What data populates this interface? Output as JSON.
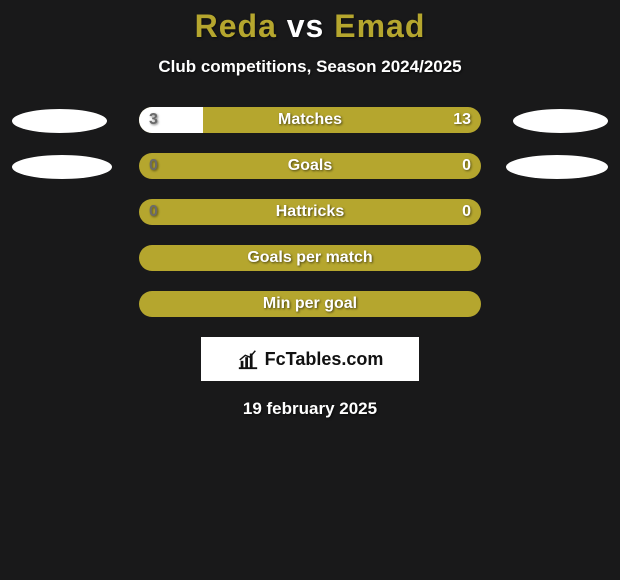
{
  "colors": {
    "background": "#19191a",
    "accent": "#b5a62e",
    "white": "#ffffff",
    "title_player": "#b5a62e",
    "title_vs": "#ffffff",
    "val_left_text": "#6a6a6a"
  },
  "title": {
    "player1": "Reda",
    "vs": "vs",
    "player2": "Emad",
    "fontsize": 32
  },
  "subtitle": {
    "text": "Club competitions, Season 2024/2025",
    "fontsize": 17
  },
  "rows": [
    {
      "type": "split",
      "label": "Matches",
      "left_value": "3",
      "right_value": "13",
      "left_num": 3,
      "right_num": 13,
      "oval_left_width": 95,
      "oval_right_width": 95
    },
    {
      "type": "split",
      "label": "Goals",
      "left_value": "0",
      "right_value": "0",
      "left_num": 0,
      "right_num": 0,
      "oval_left_width": 100,
      "oval_right_width": 102
    },
    {
      "type": "split",
      "label": "Hattricks",
      "left_value": "0",
      "right_value": "0",
      "left_num": 0,
      "right_num": 0,
      "oval_left_width": 0,
      "oval_right_width": 0
    },
    {
      "type": "chip",
      "label": "Goals per match"
    },
    {
      "type": "chip",
      "label": "Min per goal"
    }
  ],
  "bar": {
    "track_width": 342,
    "track_height": 26,
    "border_radius": 13
  },
  "logo": {
    "brand_prefix": "Fc",
    "brand_main": "Tables",
    "brand_suffix": ".com",
    "icon_name": "bar-chart-icon"
  },
  "date": "19 february 2025"
}
